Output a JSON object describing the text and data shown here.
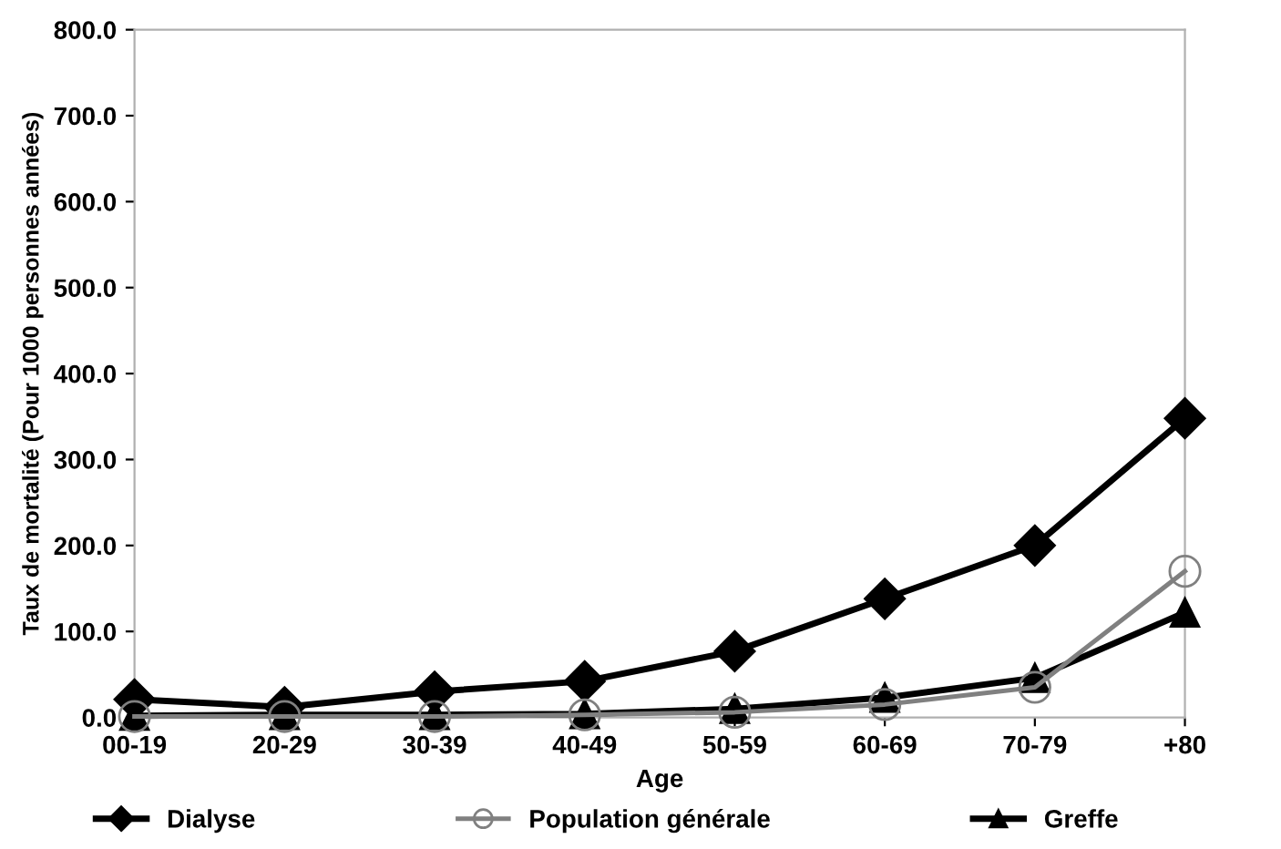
{
  "chart_data": {
    "type": "line",
    "xlabel": "Age",
    "ylabel": "Taux de mortalité (Pour 1000 personnes années)",
    "categories": [
      "00-19",
      "20-29",
      "30-39",
      "40-49",
      "50-59",
      "60-69",
      "70-79",
      "+80"
    ],
    "series": [
      {
        "name": "Dialyse",
        "color": "#000000",
        "marker": "diamond",
        "values": [
          21,
          12,
          30,
          42,
          77,
          138,
          200,
          348
        ]
      },
      {
        "name": "Population générale",
        "color": "#808080",
        "marker": "circle",
        "values": [
          1,
          1,
          1,
          3,
          6,
          15,
          35,
          170
        ]
      },
      {
        "name": "Greffe",
        "color": "#000000",
        "marker": "triangle",
        "values": [
          2,
          3,
          3,
          4,
          10,
          23,
          46,
          122
        ]
      }
    ],
    "ylim": [
      0,
      800
    ],
    "yticks": [
      {
        "value": 0,
        "label": "0.0"
      },
      {
        "value": 100,
        "label": "100.0"
      },
      {
        "value": 200,
        "label": "200.0"
      },
      {
        "value": 300,
        "label": "300.0"
      },
      {
        "value": 400,
        "label": "400.0"
      },
      {
        "value": 500,
        "label": "500.0"
      },
      {
        "value": 600,
        "label": "600.0"
      },
      {
        "value": 700,
        "label": "700.0"
      },
      {
        "value": 800,
        "label": "800.0"
      }
    ],
    "grid": false,
    "legend": "bottom"
  }
}
